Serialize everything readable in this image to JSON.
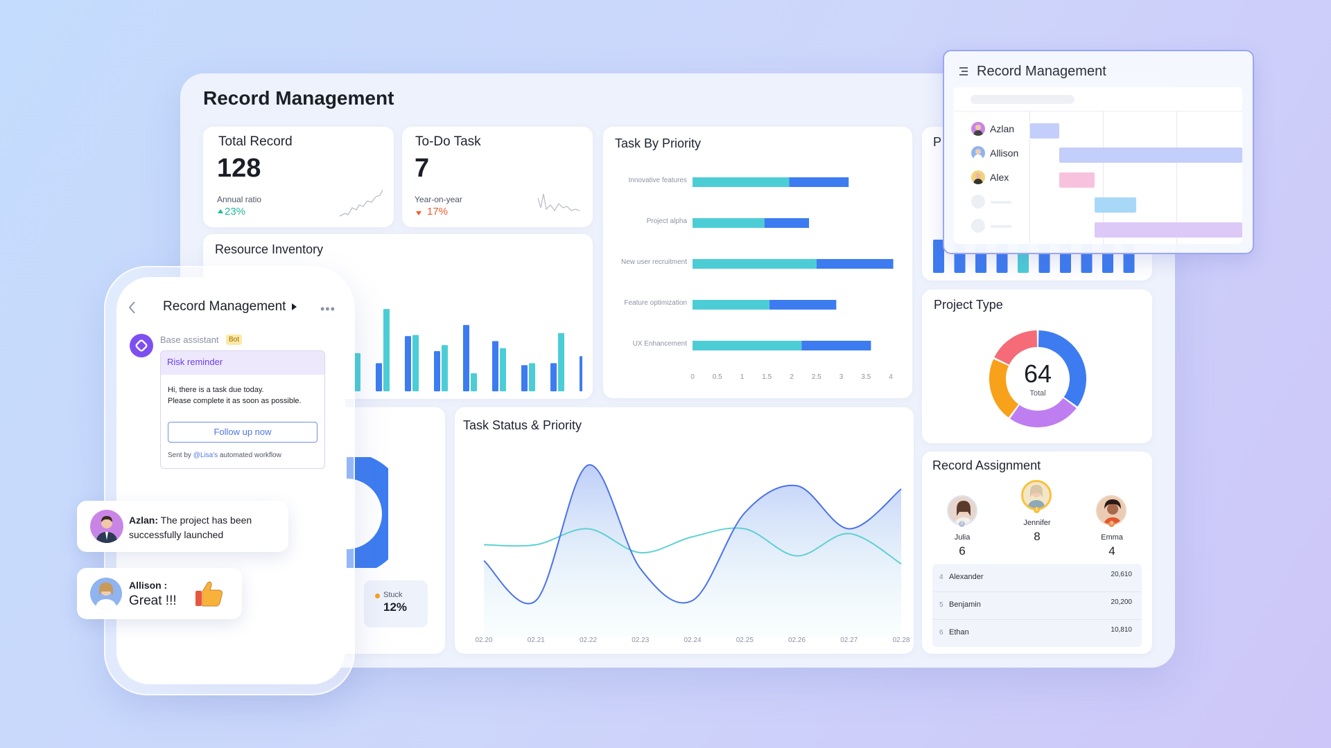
{
  "board": {
    "title": "Record Management"
  },
  "total_record": {
    "title": "Total Record",
    "value": "128",
    "label": "Annual ratio",
    "change": "23%"
  },
  "todo_task": {
    "title": "To-Do Task",
    "value": "7",
    "label": "Year-on-year",
    "change": "17%"
  },
  "task_by_priority": {
    "title": "Task By Priority",
    "chart_data": {
      "type": "bar",
      "orientation": "horizontal",
      "stacked": true,
      "categories": [
        "Innovative features",
        "Project alpha",
        "New user recruitment",
        "Feature optimization",
        "UX Enhancement"
      ],
      "series": [
        {
          "values": [
            1.95,
            1.45,
            2.5,
            1.55,
            2.2
          ]
        },
        {
          "values": [
            1.2,
            0.9,
            1.55,
            1.35,
            1.4
          ]
        }
      ],
      "xticks": [
        "0",
        "0.5",
        "1",
        "1.5",
        "2",
        "2.5",
        "3",
        "3.5",
        "4"
      ],
      "xlim": [
        0,
        4
      ]
    }
  },
  "resource_inventory": {
    "title": "Resource Inventory",
    "chart_data": {
      "type": "bar",
      "series": [
        {
          "values": [
            null,
            0.28,
            0.55,
            0.4,
            0.66,
            0.5,
            0.26,
            0.28,
            0.35
          ]
        },
        {
          "values": [
            0.38,
            0.82,
            0.56,
            0.46,
            0.18,
            0.43,
            0.28,
            0.58,
            null
          ]
        }
      ]
    }
  },
  "task_status": {
    "title": "Task Status & Priority",
    "chart_data": {
      "type": "line",
      "x": [
        "02.20",
        "02.21",
        "02.22",
        "02.23",
        "02.24",
        "02.25",
        "02.26",
        "02.27",
        "02.28"
      ],
      "series": [
        {
          "values": [
            0.35,
            0.1,
            0.95,
            0.3,
            0.1,
            0.65,
            0.82,
            0.55,
            0.8
          ]
        },
        {
          "values": [
            0.45,
            0.45,
            0.55,
            0.4,
            0.5,
            0.55,
            0.38,
            0.52,
            0.33
          ]
        }
      ]
    }
  },
  "donut_card": {
    "label": "Stuck",
    "value": "12%"
  },
  "project_type": {
    "title": "Project Type",
    "total": "64",
    "total_label": "Total",
    "chart_data": {
      "type": "pie",
      "values": [
        35,
        25,
        22,
        18
      ],
      "colors": [
        "#3d7cf0",
        "#bf7ef0",
        "#f8a11b",
        "#f56b78"
      ]
    }
  },
  "project_bars": {
    "chart_data": {
      "type": "bar",
      "values": [
        1,
        1,
        1,
        1,
        1,
        1,
        1,
        1,
        1,
        1
      ],
      "highlight_index": 4
    },
    "partial_title": "P"
  },
  "record_assignment": {
    "title": "Record Assignment",
    "top": [
      {
        "name": "Julia",
        "count": "6",
        "rank": "2"
      },
      {
        "name": "Jennifer",
        "count": "8",
        "rank": "1"
      },
      {
        "name": "Emma",
        "count": "4",
        "rank": "3"
      }
    ],
    "rows": [
      {
        "rank": "4",
        "name": "Alexander",
        "value": "20,610"
      },
      {
        "rank": "5",
        "name": "Benjamin",
        "value": "20,200"
      },
      {
        "rank": "6",
        "name": "Ethan",
        "value": "10,810"
      }
    ]
  },
  "gantt": {
    "title": "Record Management",
    "people": [
      "Azlan",
      "Allison",
      "Alex"
    ],
    "colors": [
      "#c3cefa",
      "#c3cefa",
      "#f7c2de",
      "#a8d8f8",
      "#dcc9f8"
    ]
  },
  "phone": {
    "title": "Record Management",
    "assistant": "Base assistant",
    "bot_badge": "Bot",
    "reminder_title": "Risk reminder",
    "message_line1": "Hi, there is a task due today.",
    "message_line2": "Please complete it as soon as possible.",
    "follow_button": "Follow up now",
    "sent_prefix": "Sent by",
    "sent_user": "@Lisa's",
    "sent_suffix": "automated workflow"
  },
  "chat": {
    "azlan_name": "Azlan:",
    "azlan_line1": "The project has been",
    "azlan_line2": "successfully launched",
    "allison_name": "Allison :",
    "allison_msg": "Great !!!"
  },
  "colors": {
    "teal": "#4ccdd6",
    "blue": "#3d7cf0",
    "purple": "#7e4ff0"
  }
}
